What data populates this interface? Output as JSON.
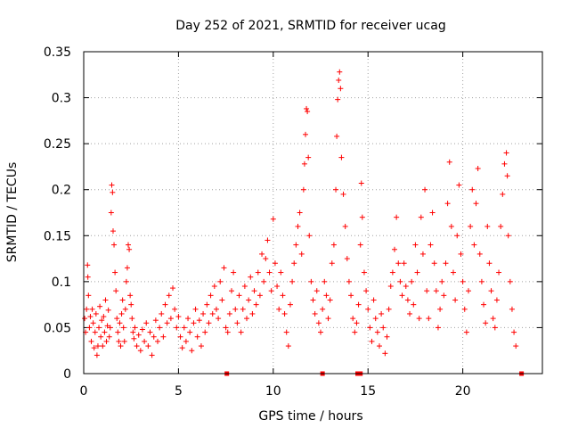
{
  "chart_data": {
    "type": "scatter",
    "title": "Day 252 of 2021, SRMTID for receiver ucag",
    "xlabel": "GPS time / hours",
    "ylabel": "SRMTID / TECUs",
    "xlim": [
      0,
      24.2
    ],
    "ylim": [
      0,
      0.35
    ],
    "x_ticks": [
      0,
      5,
      10,
      15,
      20
    ],
    "x_tick_labels": [
      "0",
      "5",
      "10",
      "15",
      "20"
    ],
    "y_ticks": [
      0,
      0.05,
      0.1,
      0.15,
      0.2,
      0.25,
      0.3,
      0.35
    ],
    "y_tick_labels": [
      "0",
      "0.05",
      "0.1",
      "0.15",
      "0.2",
      "0.25",
      "0.3",
      "0.35"
    ],
    "grid": true,
    "color": "#ff0000",
    "marker": "plus",
    "baseline_markers_x": [
      7.55,
      12.6,
      14.45,
      14.6,
      23.1
    ],
    "series": [
      {
        "name": "SRMTID",
        "points": [
          [
            0.05,
            0.06
          ],
          [
            0.1,
            0.045
          ],
          [
            0.15,
            0.07
          ],
          [
            0.2,
            0.118
          ],
          [
            0.22,
            0.105
          ],
          [
            0.25,
            0.085
          ],
          [
            0.3,
            0.05
          ],
          [
            0.35,
            0.062
          ],
          [
            0.4,
            0.035
          ],
          [
            0.45,
            0.07
          ],
          [
            0.5,
            0.055
          ],
          [
            0.55,
            0.028
          ],
          [
            0.6,
            0.045
          ],
          [
            0.65,
            0.065
          ],
          [
            0.7,
            0.02
          ],
          [
            0.75,
            0.03
          ],
          [
            0.8,
            0.05
          ],
          [
            0.85,
            0.073
          ],
          [
            0.9,
            0.04
          ],
          [
            0.95,
            0.058
          ],
          [
            1.0,
            0.03
          ],
          [
            1.05,
            0.062
          ],
          [
            1.1,
            0.045
          ],
          [
            1.15,
            0.08
          ],
          [
            1.2,
            0.035
          ],
          [
            1.25,
            0.052
          ],
          [
            1.3,
            0.069
          ],
          [
            1.35,
            0.04
          ],
          [
            1.4,
            0.05
          ],
          [
            1.45,
            0.175
          ],
          [
            1.48,
            0.205
          ],
          [
            1.52,
            0.197
          ],
          [
            1.55,
            0.155
          ],
          [
            1.6,
            0.14
          ],
          [
            1.65,
            0.11
          ],
          [
            1.7,
            0.09
          ],
          [
            1.75,
            0.06
          ],
          [
            1.8,
            0.045
          ],
          [
            1.85,
            0.035
          ],
          [
            1.9,
            0.055
          ],
          [
            1.95,
            0.03
          ],
          [
            2.0,
            0.065
          ],
          [
            2.05,
            0.08
          ],
          [
            2.1,
            0.05
          ],
          [
            2.15,
            0.035
          ],
          [
            2.2,
            0.07
          ],
          [
            2.25,
            0.1
          ],
          [
            2.3,
            0.115
          ],
          [
            2.35,
            0.14
          ],
          [
            2.4,
            0.135
          ],
          [
            2.45,
            0.085
          ],
          [
            2.5,
            0.075
          ],
          [
            2.55,
            0.06
          ],
          [
            2.6,
            0.045
          ],
          [
            2.65,
            0.038
          ],
          [
            2.7,
            0.05
          ],
          [
            2.8,
            0.03
          ],
          [
            2.9,
            0.042
          ],
          [
            3.0,
            0.025
          ],
          [
            3.1,
            0.048
          ],
          [
            3.2,
            0.035
          ],
          [
            3.3,
            0.055
          ],
          [
            3.4,
            0.03
          ],
          [
            3.5,
            0.045
          ],
          [
            3.6,
            0.02
          ],
          [
            3.7,
            0.04
          ],
          [
            3.8,
            0.058
          ],
          [
            3.9,
            0.035
          ],
          [
            4.0,
            0.05
          ],
          [
            4.1,
            0.065
          ],
          [
            4.2,
            0.04
          ],
          [
            4.3,
            0.075
          ],
          [
            4.4,
            0.055
          ],
          [
            4.5,
            0.085
          ],
          [
            4.6,
            0.06
          ],
          [
            4.7,
            0.093
          ],
          [
            4.8,
            0.07
          ],
          [
            4.9,
            0.05
          ],
          [
            5.0,
            0.062
          ],
          [
            5.1,
            0.04
          ],
          [
            5.2,
            0.028
          ],
          [
            5.3,
            0.05
          ],
          [
            5.4,
            0.035
          ],
          [
            5.5,
            0.06
          ],
          [
            5.6,
            0.045
          ],
          [
            5.7,
            0.025
          ],
          [
            5.8,
            0.055
          ],
          [
            5.9,
            0.07
          ],
          [
            6.0,
            0.04
          ],
          [
            6.1,
            0.058
          ],
          [
            6.2,
            0.03
          ],
          [
            6.3,
            0.065
          ],
          [
            6.4,
            0.045
          ],
          [
            6.5,
            0.075
          ],
          [
            6.6,
            0.055
          ],
          [
            6.7,
            0.085
          ],
          [
            6.8,
            0.065
          ],
          [
            6.9,
            0.095
          ],
          [
            7.0,
            0.07
          ],
          [
            7.1,
            0.06
          ],
          [
            7.2,
            0.1
          ],
          [
            7.3,
            0.08
          ],
          [
            7.4,
            0.115
          ],
          [
            7.5,
            0.05
          ],
          [
            7.6,
            0.045
          ],
          [
            7.7,
            0.065
          ],
          [
            7.8,
            0.09
          ],
          [
            7.9,
            0.11
          ],
          [
            8.0,
            0.07
          ],
          [
            8.1,
            0.055
          ],
          [
            8.2,
            0.085
          ],
          [
            8.3,
            0.045
          ],
          [
            8.4,
            0.07
          ],
          [
            8.5,
            0.095
          ],
          [
            8.6,
            0.06
          ],
          [
            8.7,
            0.08
          ],
          [
            8.8,
            0.105
          ],
          [
            8.9,
            0.065
          ],
          [
            9.0,
            0.09
          ],
          [
            9.1,
            0.075
          ],
          [
            9.2,
            0.11
          ],
          [
            9.3,
            0.085
          ],
          [
            9.4,
            0.13
          ],
          [
            9.5,
            0.1
          ],
          [
            9.6,
            0.125
          ],
          [
            9.7,
            0.145
          ],
          [
            9.8,
            0.11
          ],
          [
            9.9,
            0.09
          ],
          [
            10.0,
            0.168
          ],
          [
            10.1,
            0.12
          ],
          [
            10.2,
            0.095
          ],
          [
            10.3,
            0.07
          ],
          [
            10.4,
            0.11
          ],
          [
            10.5,
            0.085
          ],
          [
            10.6,
            0.065
          ],
          [
            10.7,
            0.045
          ],
          [
            10.8,
            0.03
          ],
          [
            10.9,
            0.075
          ],
          [
            11.0,
            0.1
          ],
          [
            11.1,
            0.12
          ],
          [
            11.2,
            0.14
          ],
          [
            11.3,
            0.16
          ],
          [
            11.4,
            0.175
          ],
          [
            11.5,
            0.13
          ],
          [
            11.6,
            0.2
          ],
          [
            11.65,
            0.228
          ],
          [
            11.7,
            0.26
          ],
          [
            11.75,
            0.288
          ],
          [
            11.8,
            0.285
          ],
          [
            11.85,
            0.235
          ],
          [
            11.9,
            0.15
          ],
          [
            12.0,
            0.1
          ],
          [
            12.1,
            0.08
          ],
          [
            12.2,
            0.065
          ],
          [
            12.3,
            0.09
          ],
          [
            12.4,
            0.055
          ],
          [
            12.5,
            0.045
          ],
          [
            12.6,
            0.07
          ],
          [
            12.7,
            0.1
          ],
          [
            12.8,
            0.085
          ],
          [
            12.9,
            0.06
          ],
          [
            13.0,
            0.08
          ],
          [
            13.1,
            0.12
          ],
          [
            13.2,
            0.14
          ],
          [
            13.3,
            0.2
          ],
          [
            13.35,
            0.258
          ],
          [
            13.4,
            0.298
          ],
          [
            13.45,
            0.319
          ],
          [
            13.5,
            0.328
          ],
          [
            13.55,
            0.31
          ],
          [
            13.6,
            0.235
          ],
          [
            13.7,
            0.195
          ],
          [
            13.8,
            0.16
          ],
          [
            13.9,
            0.125
          ],
          [
            14.0,
            0.1
          ],
          [
            14.1,
            0.085
          ],
          [
            14.2,
            0.06
          ],
          [
            14.3,
            0.045
          ],
          [
            14.4,
            0.055
          ],
          [
            14.5,
            0.075
          ],
          [
            14.6,
            0.14
          ],
          [
            14.65,
            0.207
          ],
          [
            14.7,
            0.17
          ],
          [
            14.8,
            0.11
          ],
          [
            14.9,
            0.09
          ],
          [
            15.0,
            0.07
          ],
          [
            15.1,
            0.05
          ],
          [
            15.2,
            0.035
          ],
          [
            15.3,
            0.08
          ],
          [
            15.4,
            0.06
          ],
          [
            15.5,
            0.045
          ],
          [
            15.6,
            0.03
          ],
          [
            15.7,
            0.065
          ],
          [
            15.8,
            0.05
          ],
          [
            15.9,
            0.022
          ],
          [
            16.0,
            0.04
          ],
          [
            16.1,
            0.07
          ],
          [
            16.2,
            0.095
          ],
          [
            16.3,
            0.11
          ],
          [
            16.4,
            0.135
          ],
          [
            16.5,
            0.17
          ],
          [
            16.6,
            0.12
          ],
          [
            16.7,
            0.1
          ],
          [
            16.8,
            0.085
          ],
          [
            16.9,
            0.12
          ],
          [
            17.0,
            0.095
          ],
          [
            17.1,
            0.08
          ],
          [
            17.2,
            0.065
          ],
          [
            17.3,
            0.1
          ],
          [
            17.4,
            0.075
          ],
          [
            17.5,
            0.14
          ],
          [
            17.6,
            0.11
          ],
          [
            17.7,
            0.06
          ],
          [
            17.8,
            0.17
          ],
          [
            17.9,
            0.13
          ],
          [
            18.0,
            0.2
          ],
          [
            18.1,
            0.09
          ],
          [
            18.2,
            0.06
          ],
          [
            18.3,
            0.14
          ],
          [
            18.4,
            0.175
          ],
          [
            18.5,
            0.12
          ],
          [
            18.6,
            0.09
          ],
          [
            18.7,
            0.05
          ],
          [
            18.8,
            0.07
          ],
          [
            18.9,
            0.1
          ],
          [
            19.0,
            0.085
          ],
          [
            19.1,
            0.12
          ],
          [
            19.2,
            0.185
          ],
          [
            19.3,
            0.23
          ],
          [
            19.4,
            0.16
          ],
          [
            19.5,
            0.11
          ],
          [
            19.6,
            0.08
          ],
          [
            19.7,
            0.15
          ],
          [
            19.8,
            0.205
          ],
          [
            19.9,
            0.13
          ],
          [
            20.0,
            0.1
          ],
          [
            20.1,
            0.07
          ],
          [
            20.2,
            0.045
          ],
          [
            20.3,
            0.09
          ],
          [
            20.4,
            0.16
          ],
          [
            20.5,
            0.2
          ],
          [
            20.6,
            0.14
          ],
          [
            20.7,
            0.185
          ],
          [
            20.8,
            0.223
          ],
          [
            20.9,
            0.13
          ],
          [
            21.0,
            0.1
          ],
          [
            21.1,
            0.075
          ],
          [
            21.2,
            0.055
          ],
          [
            21.3,
            0.16
          ],
          [
            21.4,
            0.12
          ],
          [
            21.5,
            0.09
          ],
          [
            21.6,
            0.06
          ],
          [
            21.7,
            0.05
          ],
          [
            21.8,
            0.08
          ],
          [
            21.9,
            0.11
          ],
          [
            22.0,
            0.16
          ],
          [
            22.1,
            0.195
          ],
          [
            22.2,
            0.228
          ],
          [
            22.3,
            0.24
          ],
          [
            22.35,
            0.215
          ],
          [
            22.4,
            0.15
          ],
          [
            22.5,
            0.1
          ],
          [
            22.6,
            0.07
          ],
          [
            22.7,
            0.045
          ],
          [
            22.8,
            0.03
          ]
        ]
      }
    ]
  }
}
